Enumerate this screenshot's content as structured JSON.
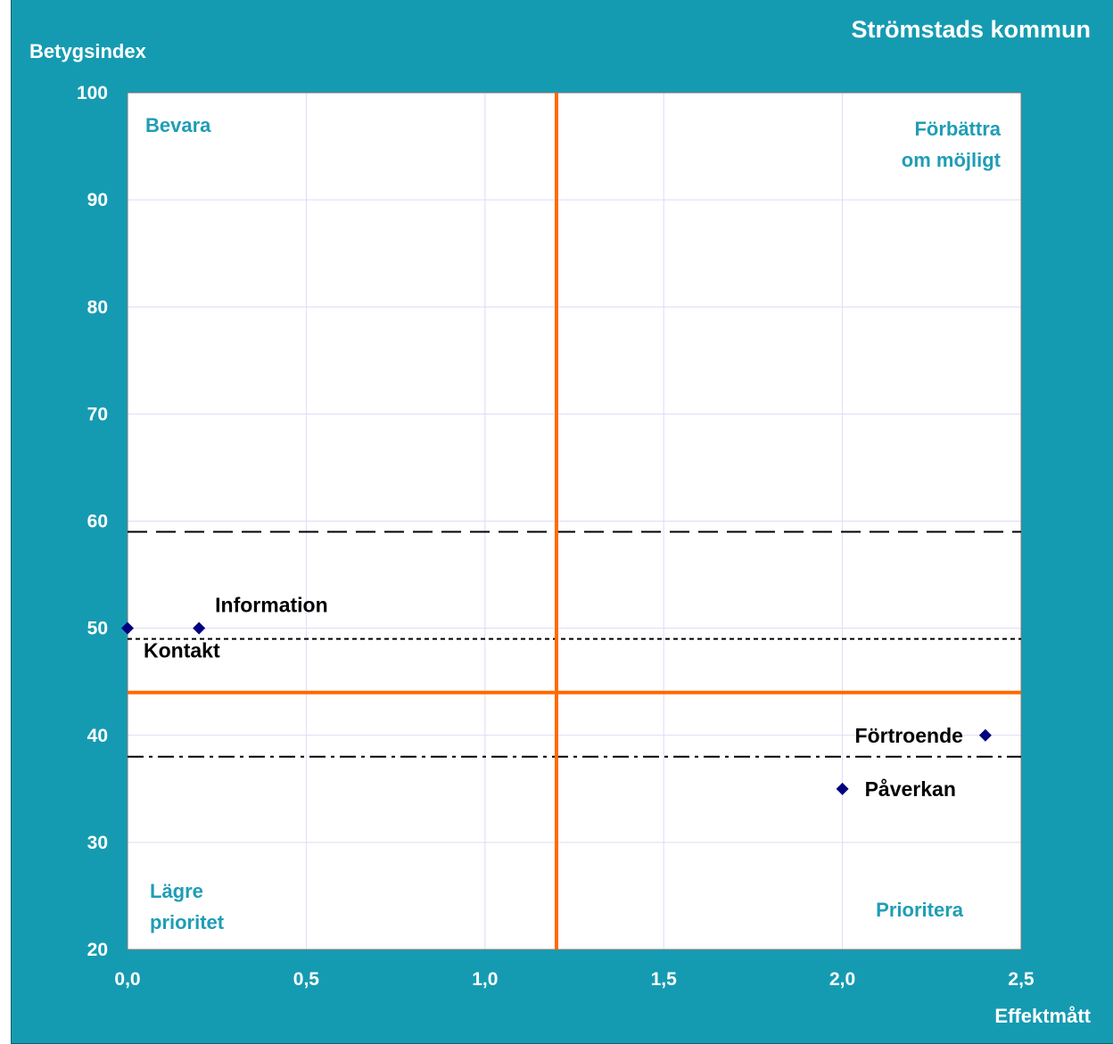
{
  "chart_data": {
    "type": "scatter",
    "title": "Strömstads kommun",
    "xlabel": "Effektmått",
    "ylabel": "Betygsindex",
    "xlim": [
      0,
      2.5
    ],
    "ylim": [
      20,
      100
    ],
    "xticks": [
      "0,0",
      "0,5",
      "1,0",
      "1,5",
      "2,0",
      "2,5"
    ],
    "xtick_values": [
      0,
      0.5,
      1.0,
      1.5,
      2.0,
      2.5
    ],
    "yticks": [
      "20",
      "30",
      "40",
      "50",
      "60",
      "70",
      "80",
      "90",
      "100"
    ],
    "ytick_values": [
      20,
      30,
      40,
      50,
      60,
      70,
      80,
      90,
      100
    ],
    "grid": true,
    "points": [
      {
        "label": "Kontakt",
        "x": 0.0,
        "y": 50
      },
      {
        "label": "Information",
        "x": 0.2,
        "y": 50
      },
      {
        "label": "Förtroende",
        "x": 2.4,
        "y": 40
      },
      {
        "label": "Påverkan",
        "x": 2.0,
        "y": 35
      }
    ],
    "quadrant_lines": {
      "x": 1.2,
      "y": 44,
      "color": "#ff6a00"
    },
    "reference_lines": [
      {
        "y": 59,
        "style": "long-dash"
      },
      {
        "y": 49,
        "style": "short-dash"
      },
      {
        "y": 38,
        "style": "dash-dot"
      }
    ],
    "quadrant_labels": {
      "top_left": [
        "Bevara"
      ],
      "top_right": [
        "Förbättra",
        "om möjligt"
      ],
      "bottom_left": [
        "Lägre",
        "prioritet"
      ],
      "bottom_right": [
        "Prioritera"
      ]
    },
    "colors": {
      "background": "#159bb1",
      "plot_area": "#ffffff",
      "marker": "#00007f",
      "quadrant_text": "#1f9db5",
      "gridline": "#dcdcf5"
    }
  }
}
